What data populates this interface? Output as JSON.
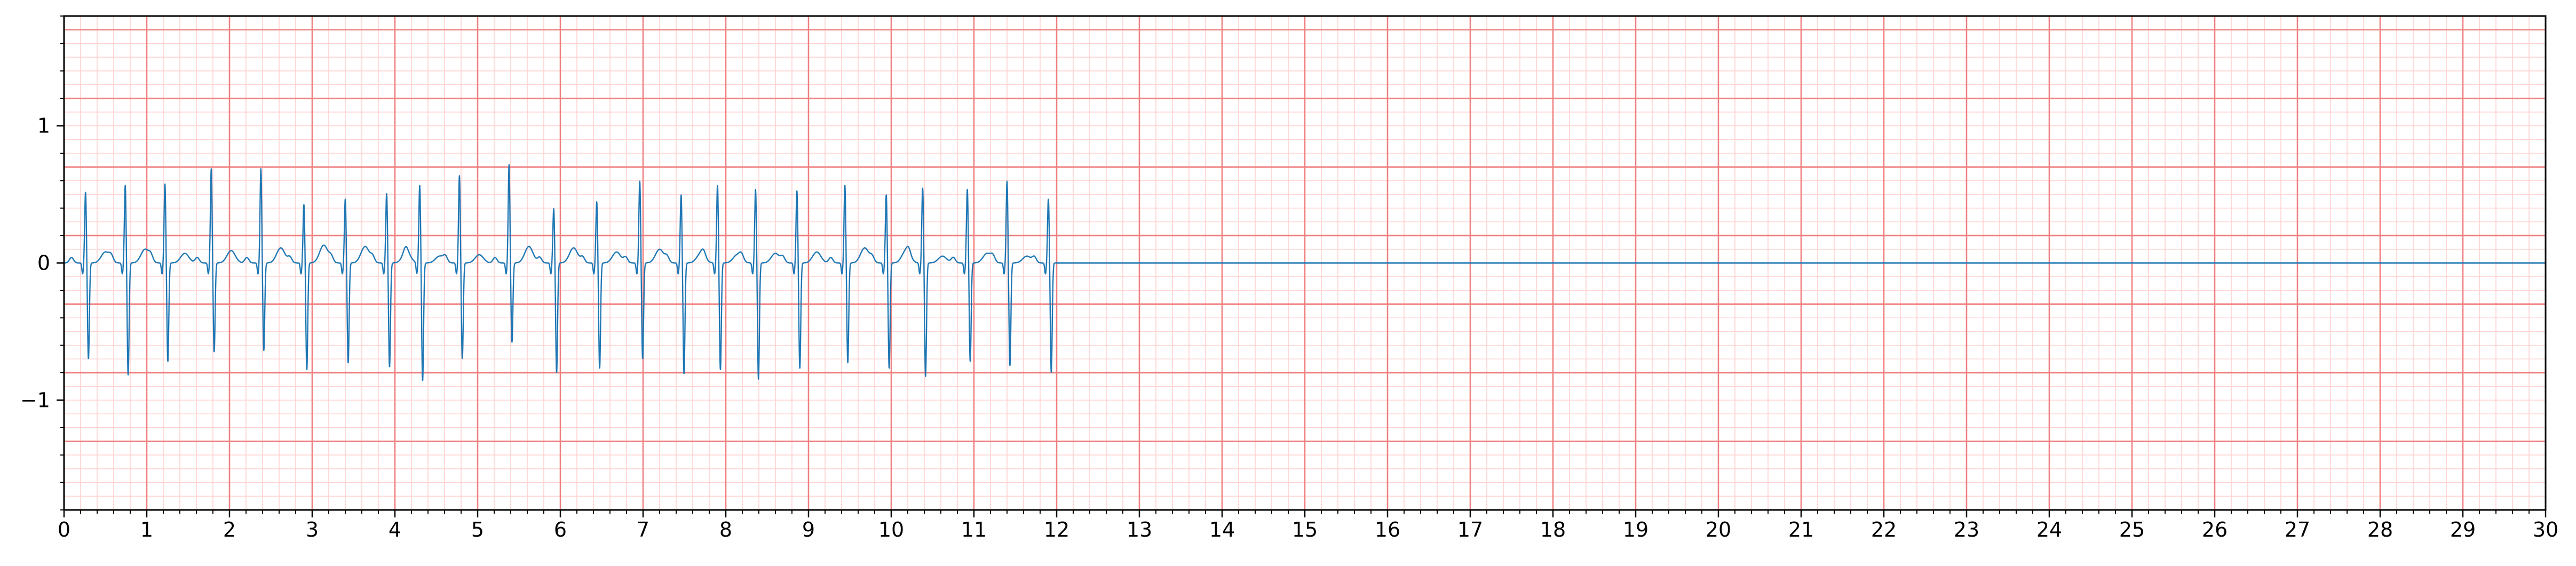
{
  "chart_data": {
    "type": "line",
    "title": "",
    "xlabel": "",
    "ylabel": "",
    "xlim": [
      0,
      30
    ],
    "ylim": [
      -1.8,
      1.8
    ],
    "grid": {
      "major_x_step": 1,
      "minor_x_step": 0.2,
      "major_y_step": 0.5,
      "minor_y_step": 0.1,
      "major_color": "#f08080",
      "minor_color": "#ffd0d0"
    },
    "x_ticks": [
      0,
      1,
      2,
      3,
      4,
      5,
      6,
      7,
      8,
      9,
      10,
      11,
      12,
      13,
      14,
      15,
      16,
      17,
      18,
      19,
      20,
      21,
      22,
      23,
      24,
      25,
      26,
      27,
      28,
      29,
      30
    ],
    "x_tick_labels": [
      "0",
      "1",
      "2",
      "3",
      "4",
      "5",
      "6",
      "7",
      "8",
      "9",
      "10",
      "11",
      "12",
      "13",
      "14",
      "15",
      "16",
      "17",
      "18",
      "19",
      "20",
      "21",
      "22",
      "23",
      "24",
      "25",
      "26",
      "27",
      "28",
      "29",
      "30"
    ],
    "y_ticks": [
      -1,
      0,
      1
    ],
    "y_tick_labels": [
      "−1",
      "0",
      "1"
    ],
    "series": [
      {
        "color": "#1f77b4",
        "signal_end": 12.0,
        "beats": [
          {
            "t": 0.26,
            "r": 0.52,
            "s": -0.7,
            "tw": 0.08
          },
          {
            "t": 0.74,
            "r": 0.57,
            "s": -0.82,
            "tw": 0.1
          },
          {
            "t": 1.22,
            "r": 0.58,
            "s": -0.72,
            "tw": 0.07
          },
          {
            "t": 1.78,
            "r": 0.69,
            "s": -0.65,
            "tw": 0.09
          },
          {
            "t": 2.38,
            "r": 0.69,
            "s": -0.64,
            "tw": 0.11
          },
          {
            "t": 2.9,
            "r": 0.43,
            "s": -0.78,
            "tw": 0.13
          },
          {
            "t": 3.4,
            "r": 0.47,
            "s": -0.73,
            "tw": 0.12
          },
          {
            "t": 3.9,
            "r": 0.51,
            "s": -0.76,
            "tw": 0.08
          },
          {
            "t": 4.3,
            "r": 0.57,
            "s": -0.86,
            "tw": 0.05
          },
          {
            "t": 4.78,
            "r": 0.64,
            "s": -0.7,
            "tw": 0.06
          },
          {
            "t": 5.38,
            "r": 0.72,
            "s": -0.58,
            "tw": 0.12
          },
          {
            "t": 5.92,
            "r": 0.4,
            "s": -0.8,
            "tw": 0.11
          },
          {
            "t": 6.44,
            "r": 0.45,
            "s": -0.77,
            "tw": 0.08
          },
          {
            "t": 6.96,
            "r": 0.6,
            "s": -0.7,
            "tw": 0.1
          },
          {
            "t": 7.46,
            "r": 0.5,
            "s": -0.81,
            "tw": 0.07
          },
          {
            "t": 7.9,
            "r": 0.57,
            "s": -0.78,
            "tw": 0.06
          },
          {
            "t": 8.36,
            "r": 0.54,
            "s": -0.85,
            "tw": 0.07
          },
          {
            "t": 8.86,
            "r": 0.53,
            "s": -0.77,
            "tw": 0.08
          },
          {
            "t": 9.44,
            "r": 0.57,
            "s": -0.73,
            "tw": 0.11
          },
          {
            "t": 9.94,
            "r": 0.5,
            "s": -0.77,
            "tw": 0.09
          },
          {
            "t": 10.38,
            "r": 0.55,
            "s": -0.83,
            "tw": 0.05
          },
          {
            "t": 10.92,
            "r": 0.54,
            "s": -0.72,
            "tw": 0.07
          },
          {
            "t": 11.4,
            "r": 0.6,
            "s": -0.75,
            "tw": 0.05
          },
          {
            "t": 11.9,
            "r": 0.47,
            "s": -0.8,
            "tw": 0.03
          }
        ]
      }
    ]
  }
}
